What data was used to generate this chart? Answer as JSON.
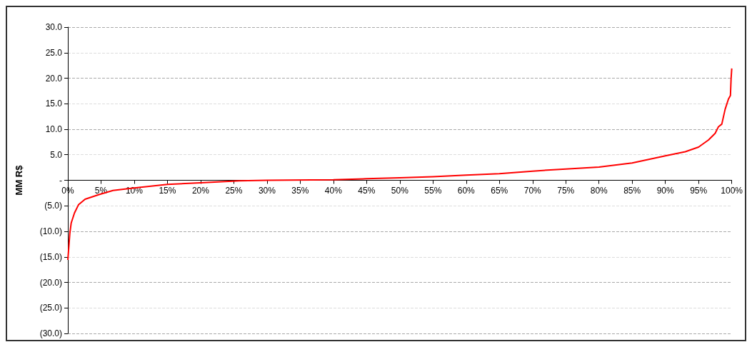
{
  "chart_data": {
    "type": "line",
    "ylabel": "MM R$",
    "x": [
      0,
      0.3,
      0.5,
      1,
      1.6,
      2.6,
      4.7,
      6.8,
      10,
      15,
      20,
      25.8,
      30,
      40,
      45,
      50,
      55,
      60,
      65,
      70,
      73.6,
      75,
      80,
      85,
      90,
      93,
      95,
      96.5,
      97.5,
      98,
      98.5,
      99,
      99.5,
      99.8,
      99.9,
      100
    ],
    "series": [
      {
        "color": "#ff0000",
        "values": [
          -15.6,
          -10.4,
          -8.4,
          -6.4,
          -4.8,
          -3.7,
          -2.8,
          -2.0,
          -1.5,
          -0.8,
          -0.5,
          -0.1,
          0,
          0.1,
          0.3,
          0.5,
          0.7,
          1.0,
          1.3,
          1.8,
          2.1,
          2.2,
          2.6,
          3.4,
          4.8,
          5.6,
          6.5,
          7.9,
          9.2,
          10.5,
          11.0,
          13.9,
          15.9,
          16.6,
          19.9,
          21.9
        ]
      }
    ],
    "xlim": [
      0,
      100
    ],
    "xticks": [
      {
        "value": 0,
        "label": "0%"
      },
      {
        "value": 5,
        "label": "5%"
      },
      {
        "value": 10,
        "label": "10%"
      },
      {
        "value": 15,
        "label": "15%"
      },
      {
        "value": 20,
        "label": "20%"
      },
      {
        "value": 25,
        "label": "25%"
      },
      {
        "value": 30,
        "label": "30%"
      },
      {
        "value": 35,
        "label": "35%"
      },
      {
        "value": 40,
        "label": "40%"
      },
      {
        "value": 45,
        "label": "45%"
      },
      {
        "value": 50,
        "label": "50%"
      },
      {
        "value": 55,
        "label": "55%"
      },
      {
        "value": 60,
        "label": "60%"
      },
      {
        "value": 65,
        "label": "65%"
      },
      {
        "value": 70,
        "label": "70%"
      },
      {
        "value": 75,
        "label": "75%"
      },
      {
        "value": 80,
        "label": "80%"
      },
      {
        "value": 85,
        "label": "85%"
      },
      {
        "value": 90,
        "label": "90%"
      },
      {
        "value": 95,
        "label": "95%"
      },
      {
        "value": 100,
        "label": "100%"
      }
    ],
    "ylim": [
      -30,
      30
    ],
    "yticks": [
      {
        "value": 30,
        "label": "30.0"
      },
      {
        "value": 25,
        "label": "25.0"
      },
      {
        "value": 20,
        "label": "20.0"
      },
      {
        "value": 15,
        "label": "15.0"
      },
      {
        "value": 10,
        "label": "10.0"
      },
      {
        "value": 5,
        "label": "5.0"
      },
      {
        "value": 0,
        "label": "-"
      },
      {
        "value": -5,
        "label": "(5.0)"
      },
      {
        "value": -10,
        "label": "(10.0)"
      },
      {
        "value": -15,
        "label": "(15.0)"
      },
      {
        "value": -20,
        "label": "(20.0)"
      },
      {
        "value": -25,
        "label": "(25.0)"
      },
      {
        "value": -30,
        "label": "(30.0)"
      }
    ],
    "grid": "y",
    "marker": "none",
    "line_style": "solid"
  }
}
